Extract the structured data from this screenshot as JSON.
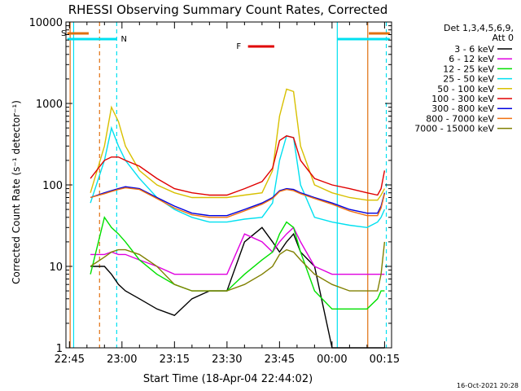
{
  "chart_data": {
    "type": "line",
    "title": "RHESSI Observing Summary Count Rates, Corrected",
    "xlabel": "Start Time (18-Apr-04 22:44:02)",
    "ylabel": "Corrected Count Rate (s⁻¹ detector⁻¹)",
    "ylim": [
      1,
      10000
    ],
    "yscale": "log",
    "xlim_minutes": [
      -1,
      92
    ],
    "x_ticks": [
      {
        "label": "22:45",
        "min": 0
      },
      {
        "label": "23:00",
        "min": 15
      },
      {
        "label": "23:15",
        "min": 30
      },
      {
        "label": "23:30",
        "min": 45
      },
      {
        "label": "23:45",
        "min": 60
      },
      {
        "label": "00:00",
        "min": 75
      },
      {
        "label": "00:15",
        "min": 90
      }
    ],
    "y_ticks": [
      {
        "label": "1",
        "v": 1
      },
      {
        "label": "10",
        "v": 10
      },
      {
        "label": "100",
        "v": 100
      },
      {
        "label": "1000",
        "v": 1000
      },
      {
        "label": "10000",
        "v": 10000
      }
    ],
    "legend_header": [
      "Det 1,3,4,5,6,9,",
      "Att 0"
    ],
    "legend_position": "right",
    "annotations": [
      {
        "label": "S",
        "color": "#e07010"
      },
      {
        "label": "N",
        "color": "#00e0f0"
      },
      {
        "label": "F",
        "color": "#e00000"
      }
    ],
    "x": [
      6,
      10,
      12,
      14,
      16,
      20,
      25,
      30,
      35,
      40,
      45,
      50,
      55,
      58,
      60,
      62,
      64,
      66,
      70,
      75,
      80,
      85,
      88,
      89,
      90
    ],
    "series": [
      {
        "name": "3 - 6 keV",
        "color": "#000000",
        "values": [
          10,
          10,
          8,
          6,
          5,
          4,
          3,
          2.5,
          4,
          5,
          5,
          20,
          30,
          20,
          15,
          20,
          25,
          15,
          10,
          1,
          1,
          1,
          1,
          1,
          1
        ]
      },
      {
        "name": "6 - 12 keV",
        "color": "#e000e0",
        "values": [
          14,
          14,
          15,
          14,
          14,
          12,
          10,
          8,
          8,
          8,
          8,
          25,
          20,
          15,
          20,
          25,
          30,
          20,
          10,
          8,
          8,
          8,
          8,
          8,
          8
        ]
      },
      {
        "name": "12 - 25 keV",
        "color": "#00e000",
        "values": [
          8,
          40,
          30,
          25,
          20,
          12,
          8,
          6,
          5,
          5,
          5,
          8,
          12,
          15,
          25,
          35,
          30,
          15,
          5,
          3,
          3,
          3,
          4,
          5,
          5
        ]
      },
      {
        "name": "25 - 50 keV",
        "color": "#00e0f0",
        "values": [
          60,
          200,
          500,
          300,
          200,
          120,
          70,
          50,
          40,
          35,
          35,
          38,
          40,
          60,
          200,
          400,
          380,
          100,
          40,
          35,
          32,
          30,
          35,
          40,
          50
        ]
      },
      {
        "name": "50 - 100 keV",
        "color": "#d8c000",
        "values": [
          80,
          300,
          900,
          600,
          300,
          150,
          100,
          80,
          70,
          70,
          70,
          75,
          80,
          150,
          700,
          1500,
          1400,
          300,
          100,
          80,
          70,
          65,
          65,
          75,
          90
        ]
      },
      {
        "name": "100 - 300 keV",
        "color": "#e00000",
        "values": [
          120,
          200,
          220,
          220,
          200,
          170,
          120,
          90,
          80,
          75,
          75,
          90,
          110,
          160,
          350,
          400,
          380,
          200,
          120,
          100,
          90,
          80,
          75,
          90,
          150
        ]
      },
      {
        "name": "300 - 800 keV",
        "color": "#0000e0",
        "values": [
          70,
          80,
          85,
          90,
          95,
          90,
          70,
          55,
          45,
          42,
          42,
          50,
          60,
          70,
          85,
          90,
          88,
          80,
          70,
          60,
          50,
          45,
          45,
          55,
          80
        ]
      },
      {
        "name": "800 - 7000 keV",
        "color": "#f07010",
        "values": [
          70,
          78,
          83,
          88,
          92,
          88,
          68,
          52,
          43,
          40,
          40,
          48,
          58,
          68,
          83,
          88,
          85,
          78,
          68,
          58,
          48,
          42,
          42,
          52,
          78
        ]
      },
      {
        "name": "7000 - 15000 keV",
        "color": "#808000",
        "values": [
          10,
          13,
          15,
          16,
          16,
          14,
          10,
          6,
          5,
          5,
          5,
          6,
          8,
          10,
          14,
          16,
          15,
          12,
          8,
          6,
          5,
          5,
          5,
          8,
          20
        ]
      }
    ],
    "grid": false
  },
  "footer": {
    "timestamp": "16-Oct-2021 20:28"
  }
}
